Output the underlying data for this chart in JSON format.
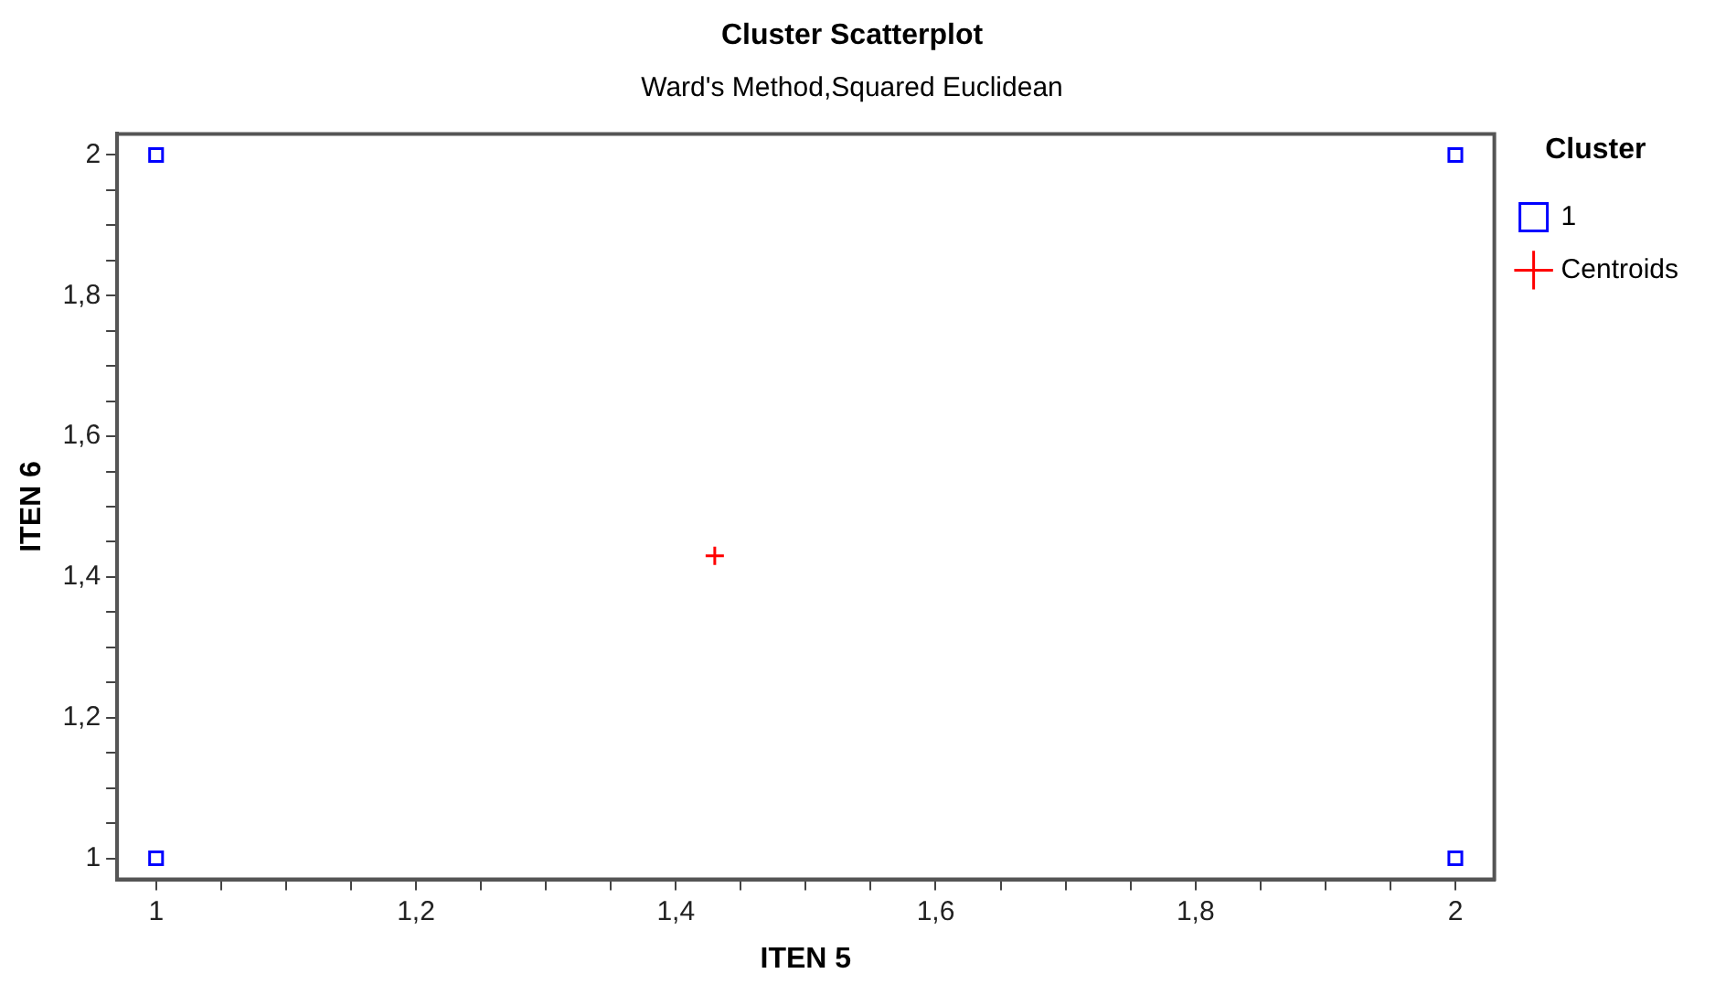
{
  "chart_data": {
    "type": "scatter",
    "title": "Cluster Scatterplot",
    "subtitle": "Ward's Method,Squared Euclidean",
    "xlabel": "ITEN 5",
    "ylabel": "ITEN 6",
    "legend_title": "Cluster",
    "legend": "top right",
    "grid": false,
    "xlim": [
      0.97,
      2.03
    ],
    "ylim": [
      0.97,
      2.03
    ],
    "xticks": [
      1,
      {
        "value": 1.05,
        "label": null
      },
      {
        "value": 1.1,
        "label": null
      },
      {
        "value": 1.15,
        "label": null
      },
      {
        "value": 1.2,
        "label": "1,2"
      },
      {
        "value": 1.25,
        "label": null
      },
      {
        "value": 1.3,
        "label": null
      },
      {
        "value": 1.35,
        "label": null
      },
      {
        "value": 1.4,
        "label": "1,4"
      },
      {
        "value": 1.45,
        "label": null
      },
      {
        "value": 1.5,
        "label": null
      },
      {
        "value": 1.55,
        "label": null
      },
      {
        "value": 1.6,
        "label": "1,6"
      },
      {
        "value": 1.65,
        "label": null
      },
      {
        "value": 1.7,
        "label": null
      },
      {
        "value": 1.75,
        "label": null
      },
      {
        "value": 1.8,
        "label": "1,8"
      },
      {
        "value": 1.85,
        "label": null
      },
      {
        "value": 1.9,
        "label": null
      },
      {
        "value": 1.95,
        "label": null
      },
      2
    ],
    "yticks": [
      1,
      {
        "value": 1.05,
        "label": null
      },
      {
        "value": 1.1,
        "label": null
      },
      {
        "value": 1.15,
        "label": null
      },
      {
        "value": 1.2,
        "label": "1,2"
      },
      {
        "value": 1.25,
        "label": null
      },
      {
        "value": 1.3,
        "label": null
      },
      {
        "value": 1.35,
        "label": null
      },
      {
        "value": 1.4,
        "label": "1,4"
      },
      {
        "value": 1.45,
        "label": null
      },
      {
        "value": 1.5,
        "label": null
      },
      {
        "value": 1.55,
        "label": null
      },
      {
        "value": 1.6,
        "label": "1,6"
      },
      {
        "value": 1.65,
        "label": null
      },
      {
        "value": 1.7,
        "label": null
      },
      {
        "value": 1.75,
        "label": null
      },
      {
        "value": 1.8,
        "label": "1,8"
      },
      {
        "value": 1.85,
        "label": null
      },
      {
        "value": 1.9,
        "label": null
      },
      {
        "value": 1.95,
        "label": null
      },
      2
    ],
    "series": [
      {
        "name": "1",
        "color": "#0000ff",
        "marker": "square",
        "x": [
          1,
          1,
          2,
          2
        ],
        "values": [
          1,
          2,
          1,
          2
        ]
      },
      {
        "name": "Centroids",
        "color": "#ff0000",
        "marker": "cross",
        "x": [
          1.43
        ],
        "values": [
          1.43
        ]
      }
    ]
  }
}
